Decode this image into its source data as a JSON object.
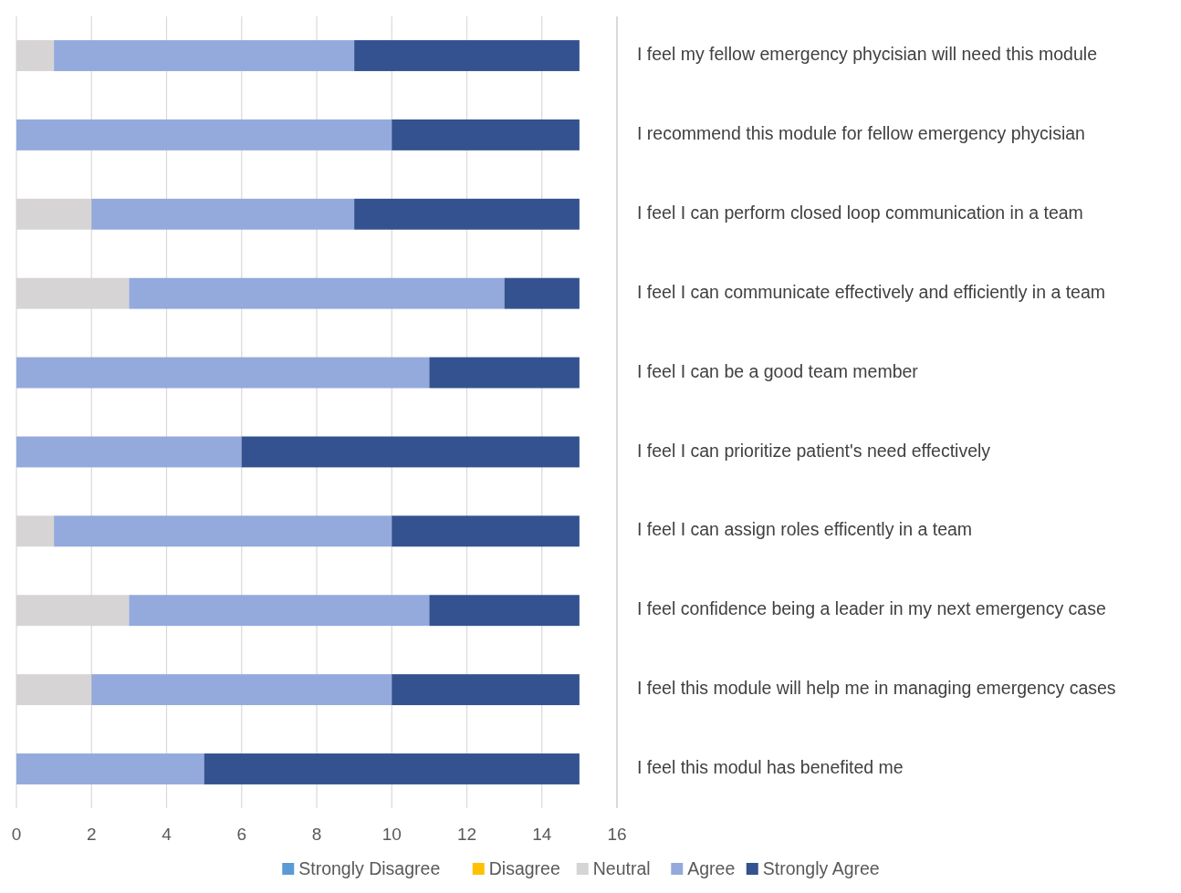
{
  "chart_data": {
    "type": "bar",
    "orientation": "horizontal",
    "stacked": true,
    "categories": [
      "I feel my fellow emergency phycisian will need this module",
      "I recommend this module for fellow emergency phycisian",
      "I feel I can perform closed loop communication in a team",
      "I feel I can communicate effectively and efficiently in a team",
      "I feel I can be a good team member",
      "I feel I can prioritize patient's need effectively",
      "I feel I can assign roles efficently in a team",
      "I feel confidence being a leader in my next emergency case",
      "I feel this module will help me in managing emergency cases",
      "I feel this modul has benefited me"
    ],
    "series": [
      {
        "name": "Strongly Disagree",
        "color": "#5b9bd5",
        "values": [
          0,
          0,
          0,
          0,
          0,
          0,
          0,
          0,
          0,
          0
        ]
      },
      {
        "name": "Disagree",
        "color": "#ffc000",
        "values": [
          0,
          0,
          0,
          0,
          0,
          0,
          0,
          0,
          0,
          0
        ]
      },
      {
        "name": "Neutral",
        "color": "#d6d4d4",
        "values": [
          1,
          0,
          2,
          3,
          0,
          0,
          1,
          3,
          2,
          0
        ]
      },
      {
        "name": "Agree",
        "color": "#94a9dc",
        "values": [
          8,
          10,
          7,
          10,
          11,
          6,
          9,
          8,
          8,
          5
        ]
      },
      {
        "name": "Strongly Agree",
        "color": "#33528f",
        "values": [
          6,
          5,
          6,
          2,
          4,
          9,
          5,
          4,
          5,
          10
        ]
      }
    ],
    "xlim": [
      0,
      16
    ],
    "xticks": [
      0,
      2,
      4,
      6,
      8,
      10,
      12,
      14,
      16
    ],
    "grid": "x",
    "legend": "bottom"
  }
}
